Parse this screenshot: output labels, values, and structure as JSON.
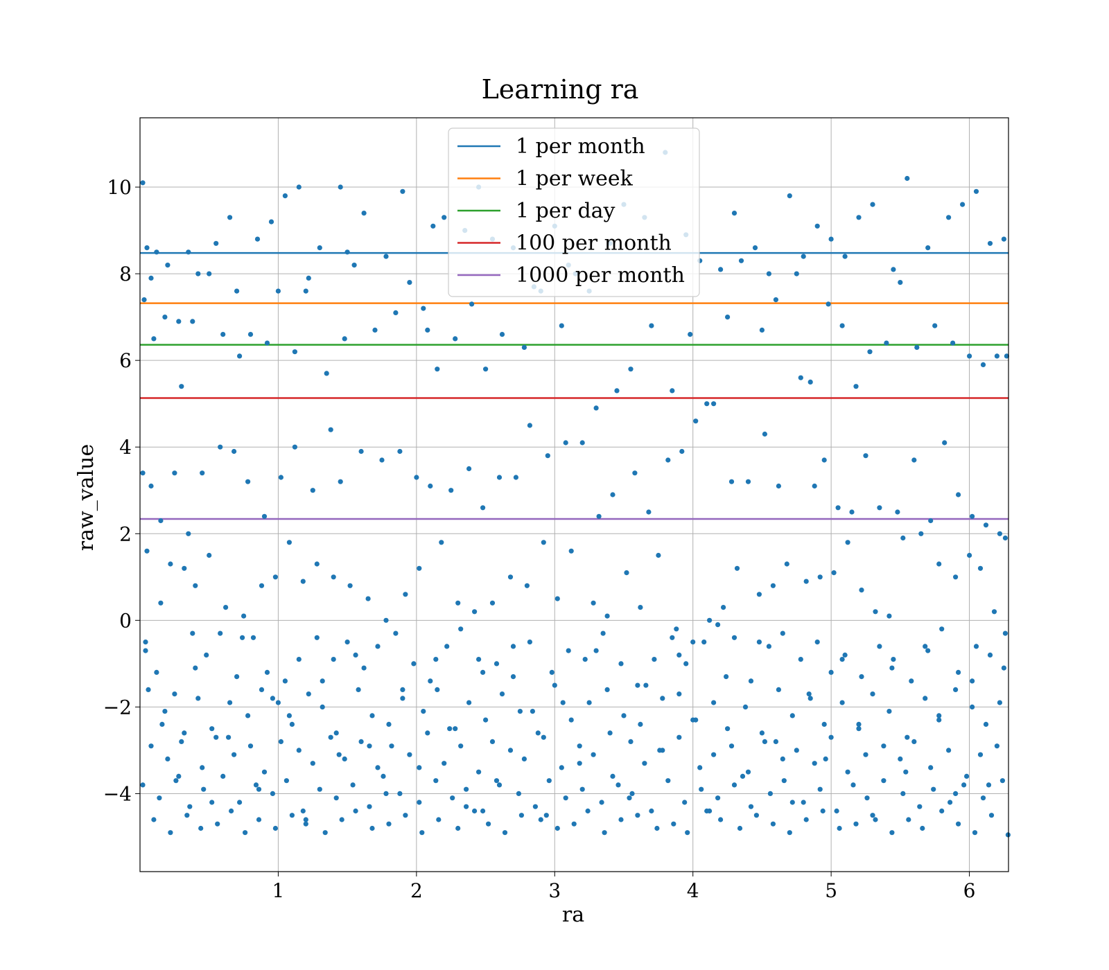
{
  "chart_data": {
    "type": "scatter",
    "title": "Learning ra",
    "xlabel": "ra",
    "ylabel": "raw_value",
    "xlim": [
      0,
      6.283
    ],
    "ylim": [
      -5.8,
      11.6
    ],
    "xticks": [
      1,
      2,
      3,
      4,
      5,
      6
    ],
    "xtick_labels": [
      "1",
      "2",
      "3",
      "4",
      "5",
      "6"
    ],
    "yticks": [
      -4,
      -2,
      0,
      2,
      4,
      6,
      8,
      10
    ],
    "ytick_labels": [
      "−4",
      "−2",
      "0",
      "2",
      "4",
      "6",
      "8",
      "10"
    ],
    "grid": true,
    "legend_position": "upper-center",
    "scatter_color": "#1f77b4",
    "reference_lines": [
      {
        "name": "1 per month",
        "y": 8.48,
        "color": "#1f77b4"
      },
      {
        "name": "1 per week",
        "y": 7.32,
        "color": "#ff7f0e"
      },
      {
        "name": "1 per day",
        "y": 6.36,
        "color": "#2ca02c"
      },
      {
        "name": "100 per month",
        "y": 5.13,
        "color": "#d62728"
      },
      {
        "name": "1000 per month",
        "y": 2.34,
        "color": "#9467bd"
      }
    ],
    "points": {
      "x": [
        0.02,
        0.05,
        0.08,
        0.12,
        0.2,
        0.28,
        0.35,
        0.42,
        0.55,
        0.65,
        0.7,
        0.85,
        0.95,
        1.05,
        1.15,
        1.2,
        1.3,
        1.45,
        1.5,
        1.62,
        1.78,
        1.9,
        2.05,
        2.12,
        2.2,
        2.35,
        2.45,
        2.55,
        2.7,
        2.85,
        3.0,
        3.1,
        3.25,
        3.4,
        3.5,
        3.65,
        3.8,
        3.95,
        4.05,
        4.2,
        4.3,
        4.45,
        4.55,
        4.7,
        4.8,
        4.9,
        5.0,
        5.1,
        5.2,
        5.3,
        5.45,
        5.55,
        5.7,
        5.85,
        5.95,
        6.05,
        6.15,
        6.25,
        0.03,
        0.1,
        0.18,
        0.3,
        0.38,
        0.5,
        0.6,
        0.72,
        0.8,
        0.92,
        1.0,
        1.12,
        1.22,
        1.35,
        1.48,
        1.55,
        1.7,
        1.85,
        1.95,
        2.08,
        2.15,
        2.28,
        2.4,
        2.5,
        2.62,
        2.78,
        2.9,
        3.05,
        3.15,
        3.3,
        3.45,
        3.55,
        3.7,
        3.85,
        3.98,
        4.1,
        4.25,
        4.35,
        4.5,
        4.6,
        4.75,
        4.85,
        4.98,
        5.08,
        5.18,
        5.28,
        5.4,
        5.5,
        5.62,
        5.75,
        5.88,
        6.0,
        6.1,
        6.2,
        6.27,
        0.02,
        0.08,
        0.15,
        0.25,
        0.35,
        0.45,
        0.58,
        0.68,
        0.78,
        0.9,
        1.02,
        1.12,
        1.25,
        1.38,
        1.45,
        1.6,
        1.75,
        1.88,
        2.0,
        2.1,
        2.25,
        2.38,
        2.48,
        2.6,
        2.72,
        2.82,
        2.95,
        3.08,
        3.2,
        3.32,
        3.42,
        3.58,
        3.68,
        3.82,
        3.92,
        4.02,
        4.15,
        4.28,
        4.4,
        4.52,
        4.62,
        4.78,
        4.88,
        4.95,
        5.05,
        5.15,
        5.25,
        5.35,
        5.48,
        5.6,
        5.72,
        5.82,
        5.92,
        6.02,
        6.12,
        6.22,
        0.05,
        0.15,
        0.22,
        0.32,
        0.4,
        0.5,
        0.62,
        0.75,
        0.88,
        0.98,
        1.08,
        1.18,
        1.28,
        1.4,
        1.52,
        1.65,
        1.78,
        1.92,
        2.02,
        2.18,
        2.3,
        2.42,
        2.55,
        2.68,
        2.8,
        2.92,
        3.02,
        3.12,
        3.28,
        3.38,
        3.52,
        3.62,
        3.75,
        3.88,
        4.0,
        4.12,
        4.22,
        4.32,
        4.48,
        4.58,
        4.68,
        4.82,
        4.92,
        5.02,
        5.12,
        5.22,
        5.32,
        5.42,
        5.52,
        5.65,
        5.78,
        5.9,
        6.0,
        6.08,
        6.18,
        6.26,
        0.04,
        0.12,
        0.25,
        0.38,
        0.48,
        0.58,
        0.7,
        0.82,
        0.92,
        1.05,
        1.15,
        1.28,
        1.4,
        1.5,
        1.62,
        1.72,
        1.85,
        1.98,
        2.1,
        2.22,
        2.32,
        2.45,
        2.58,
        2.7,
        2.82,
        2.98,
        3.1,
        3.22,
        3.35,
        3.48,
        3.6,
        3.72,
        3.85,
        3.95,
        4.08,
        4.18,
        4.3,
        4.42,
        4.55,
        4.65,
        4.78,
        4.9,
        5.0,
        5.1,
        5.22,
        5.35,
        5.45,
        5.58,
        5.7,
        5.8,
        5.92,
        6.05,
        6.15,
        6.25,
        0.06,
        0.18,
        0.3,
        0.42,
        0.52,
        0.65,
        0.78,
        0.88,
        1.0,
        1.1,
        1.22,
        1.32,
        1.42,
        1.58,
        1.68,
        1.8,
        1.9,
        2.05,
        2.15,
        2.28,
        2.38,
        2.5,
        2.62,
        2.75,
        2.88,
        3.0,
        3.12,
        3.25,
        3.38,
        3.5,
        3.62,
        3.78,
        3.9,
        4.02,
        4.15,
        4.25,
        4.38,
        4.5,
        4.62,
        4.72,
        4.85,
        4.95,
        5.08,
        5.2,
        5.3,
        5.42,
        5.55,
        5.68,
        5.78,
        5.9,
        6.02,
        6.12,
        6.22,
        0.08,
        0.2,
        0.32,
        0.45,
        0.55,
        0.68,
        0.8,
        0.9,
        1.02,
        1.15,
        1.25,
        1.38,
        1.48,
        1.6,
        1.72,
        1.82,
        1.95,
        2.08,
        2.2,
        2.32,
        2.45,
        2.55,
        2.68,
        2.78,
        2.92,
        3.05,
        3.18,
        3.28,
        3.42,
        3.55,
        3.65,
        3.78,
        3.9,
        4.05,
        4.15,
        4.28,
        4.4,
        4.52,
        4.65,
        4.75,
        4.88,
        5.0,
        5.12,
        5.25,
        5.38,
        5.5,
        5.6,
        5.72,
        5.85,
        5.98,
        6.08,
        6.2,
        0.02,
        0.14,
        0.26,
        0.36,
        0.46,
        0.6,
        0.72,
        0.84,
        0.96,
        1.06,
        1.18,
        1.3,
        1.42,
        1.54,
        1.66,
        1.76,
        1.88,
        2.02,
        2.14,
        2.26,
        2.36,
        2.48,
        2.6,
        2.74,
        2.86,
        2.96,
        3.08,
        3.2,
        3.34,
        3.46,
        3.56,
        3.7,
        3.82,
        3.94,
        4.06,
        4.18,
        4.3,
        4.42,
        4.56,
        4.66,
        4.8,
        4.92,
        5.04,
        5.16,
        5.26,
        5.38,
        5.52,
        5.64,
        5.74,
        5.86,
        5.96,
        6.1,
        6.24,
        0.1,
        0.22,
        0.34,
        0.44,
        0.56,
        0.66,
        0.76,
        0.86,
        0.98,
        1.1,
        1.2,
        1.34,
        1.46,
        1.56,
        1.68,
        1.8,
        1.92,
        2.04,
        2.16,
        2.3,
        2.42,
        2.52,
        2.64,
        2.76,
        2.9,
        3.02,
        3.14,
        3.24,
        3.36,
        3.48,
        3.6,
        3.74,
        3.86,
        3.96,
        4.1,
        4.2,
        4.34,
        4.46,
        4.58,
        4.7,
        4.82,
        4.94,
        5.06,
        5.18,
        5.3,
        5.44,
        5.56,
        5.66,
        5.8,
        5.92,
        6.04,
        6.16,
        6.28,
        0.04,
        0.16,
        0.28,
        0.4,
        0.52,
        0.64,
        0.74,
        0.86,
        0.96,
        1.08,
        1.2,
        1.32,
        1.44,
        1.56,
        1.66,
        1.78,
        1.9,
        2.02,
        2.14,
        2.24,
        2.36,
        2.48,
        2.58,
        2.7,
        2.84,
        2.94,
        3.06,
        3.18,
        3.3,
        3.4,
        3.54,
        3.66,
        3.76,
        3.9,
        4.0,
        4.12,
        4.24,
        4.36,
        4.48,
        4.6,
        4.72,
        4.84,
        4.96,
        5.08,
        5.2,
        5.32,
        5.44,
        5.54,
        5.68,
        5.78,
        5.9,
        6.02,
        6.14,
        6.26
      ],
      "y": [
        10.1,
        8.6,
        7.9,
        8.5,
        8.2,
        6.9,
        8.5,
        8.0,
        8.7,
        9.3,
        7.6,
        8.8,
        9.2,
        9.8,
        10.0,
        7.6,
        8.6,
        10.0,
        8.5,
        9.4,
        8.4,
        9.9,
        7.2,
        9.1,
        9.3,
        9.0,
        10.0,
        8.8,
        8.6,
        7.7,
        9.1,
        8.2,
        7.6,
        8.7,
        9.6,
        9.3,
        10.8,
        8.9,
        8.3,
        8.1,
        9.4,
        8.6,
        8.0,
        9.8,
        8.4,
        9.1,
        8.8,
        8.4,
        9.3,
        9.6,
        8.1,
        10.2,
        8.6,
        9.3,
        9.6,
        9.9,
        8.7,
        8.8,
        7.4,
        6.5,
        7.0,
        5.4,
        6.9,
        8.0,
        6.6,
        6.1,
        6.6,
        6.4,
        7.6,
        6.2,
        7.9,
        5.7,
        6.5,
        8.2,
        6.7,
        7.1,
        7.8,
        6.7,
        5.8,
        6.5,
        7.3,
        5.8,
        6.6,
        6.3,
        7.6,
        6.8,
        8.0,
        4.9,
        5.3,
        5.8,
        6.8,
        5.3,
        6.6,
        5.0,
        7.0,
        8.3,
        6.7,
        7.4,
        8.0,
        5.5,
        7.3,
        6.8,
        5.4,
        6.2,
        6.4,
        7.8,
        6.3,
        6.8,
        6.4,
        6.1,
        5.9,
        6.1,
        6.1,
        3.4,
        3.1,
        2.3,
        3.4,
        2.0,
        3.4,
        4.0,
        3.9,
        3.2,
        2.4,
        3.3,
        4.0,
        3.0,
        4.4,
        3.2,
        3.9,
        3.7,
        3.9,
        3.3,
        3.1,
        3.0,
        3.5,
        2.6,
        3.3,
        3.3,
        4.5,
        3.8,
        4.1,
        4.1,
        2.4,
        2.9,
        3.4,
        2.5,
        3.7,
        3.9,
        4.6,
        5.0,
        3.2,
        3.2,
        4.3,
        3.1,
        5.6,
        3.1,
        3.7,
        2.6,
        2.5,
        3.8,
        2.6,
        2.5,
        3.7,
        2.3,
        4.1,
        2.9,
        2.4,
        2.2,
        2.0,
        1.6,
        0.4,
        1.3,
        1.2,
        0.8,
        1.5,
        0.3,
        0.1,
        0.8,
        1.0,
        1.8,
        0.9,
        1.3,
        1.0,
        0.8,
        0.5,
        0.0,
        0.6,
        1.2,
        1.8,
        0.4,
        0.2,
        0.4,
        1.0,
        0.8,
        1.8,
        0.5,
        1.6,
        0.4,
        0.1,
        1.1,
        0.3,
        1.5,
        -0.2,
        -0.5,
        0.0,
        0.3,
        1.2,
        0.6,
        0.8,
        1.3,
        0.9,
        1.0,
        1.1,
        1.8,
        0.7,
        0.2,
        0.1,
        1.9,
        2.0,
        1.3,
        1.0,
        1.5,
        1.2,
        0.2,
        1.9,
        -0.5,
        -1.2,
        -1.7,
        -0.3,
        -0.8,
        -0.3,
        -1.3,
        -0.4,
        -1.2,
        -1.4,
        -0.9,
        -0.4,
        -0.9,
        -0.5,
        -1.1,
        -0.6,
        -0.3,
        -1.0,
        -1.4,
        -0.6,
        -0.2,
        -0.9,
        -1.0,
        -1.3,
        -0.5,
        -1.2,
        -0.7,
        -0.9,
        -0.3,
        -1.0,
        -1.5,
        -0.9,
        -0.4,
        -1.0,
        -0.5,
        -0.1,
        -0.4,
        -1.4,
        -0.6,
        -0.3,
        -0.9,
        -0.5,
        -1.2,
        -0.8,
        -1.3,
        -0.6,
        -0.9,
        -1.4,
        -0.7,
        -0.2,
        -1.2,
        -0.6,
        -0.8,
        -1.1,
        -1.6,
        -2.1,
        -2.8,
        -1.8,
        -2.5,
        -1.9,
        -2.2,
        -1.6,
        -1.9,
        -2.4,
        -1.7,
        -2.0,
        -2.6,
        -1.6,
        -2.2,
        -2.4,
        -1.8,
        -2.1,
        -1.6,
        -2.5,
        -1.9,
        -2.3,
        -1.7,
        -2.1,
        -2.6,
        -1.5,
        -2.3,
        -1.9,
        -1.6,
        -2.2,
        -2.4,
        -1.8,
        -1.7,
        -2.3,
        -1.9,
        -2.5,
        -2.0,
        -2.6,
        -1.6,
        -2.2,
        -1.8,
        -2.4,
        -1.9,
        -2.5,
        -1.7,
        -2.1,
        -2.7,
        -1.8,
        -2.3,
        -1.6,
        -2.0,
        -2.4,
        -1.9,
        -2.9,
        -3.2,
        -2.6,
        -3.4,
        -2.7,
        -3.1,
        -2.9,
        -3.5,
        -2.8,
        -3.0,
        -3.3,
        -2.7,
        -3.2,
        -2.8,
        -3.4,
        -2.9,
        -3.1,
        -2.6,
        -3.3,
        -2.9,
        -3.5,
        -2.8,
        -3.0,
        -3.2,
        -2.7,
        -3.4,
        -2.9,
        -3.1,
        -3.6,
        -2.8,
        -3.3,
        -3.0,
        -2.7,
        -3.4,
        -3.1,
        -2.9,
        -3.5,
        -2.8,
        -3.2,
        -3.0,
        -3.3,
        -2.7,
        -3.5,
        -3.1,
        -2.9,
        -3.2,
        -2.8,
        -3.4,
        -3.0,
        -3.6,
        -3.1,
        -2.9,
        -3.8,
        -4.1,
        -3.7,
        -4.3,
        -3.9,
        -3.6,
        -4.2,
        -3.8,
        -4.0,
        -3.7,
        -4.4,
        -3.9,
        -4.1,
        -3.8,
        -4.3,
        -3.6,
        -4.0,
        -4.2,
        -3.7,
        -4.1,
        -3.9,
        -4.4,
        -3.8,
        -4.0,
        -4.3,
        -3.7,
        -4.1,
        -3.9,
        -4.2,
        -3.8,
        -4.0,
        -4.4,
        -3.7,
        -4.2,
        -3.9,
        -4.1,
        -3.8,
        -4.3,
        -4.0,
        -3.7,
        -4.2,
        -3.9,
        -4.4,
        -3.8,
        -4.1,
        -3.7,
        -4.0,
        -4.3,
        -3.9,
        -4.2,
        -3.8,
        -4.1,
        -3.7,
        -4.6,
        -4.9,
        -4.5,
        -4.8,
        -4.7,
        -4.4,
        -4.9,
        -4.6,
        -4.8,
        -4.5,
        -4.7,
        -4.9,
        -4.6,
        -4.4,
        -4.8,
        -4.7,
        -4.5,
        -4.9,
        -4.6,
        -4.8,
        -4.4,
        -4.7,
        -4.9,
        -4.5,
        -4.6,
        -4.8,
        -4.7,
        -4.4,
        -4.9,
        -4.6,
        -4.5,
        -4.8,
        -4.7,
        -4.9,
        -4.4,
        -4.6,
        -4.8,
        -4.5,
        -4.7,
        -4.9,
        -4.6,
        -4.4,
        -4.8,
        -4.7,
        -4.5,
        -4.9,
        -4.6,
        -4.8,
        -4.4,
        -4.7,
        -4.9,
        -4.5,
        -4.95,
        -0.7,
        -2.4,
        -3.6,
        -1.1,
        -4.2,
        -2.7,
        -0.4,
        -3.9,
        -1.8,
        -2.2,
        -4.6,
        -1.4,
        -3.1,
        -0.8,
        -2.9,
        -4.0,
        -1.6,
        -3.4,
        -0.9,
        -2.5,
        -4.3,
        -1.2,
        -3.7,
        -0.6,
        -2.1,
        -4.5,
        -1.9,
        -3.3,
        -0.7,
        -2.6,
        -4.1,
        -1.5,
        -3.0,
        -0.8,
        -2.3,
        -4.4,
        -1.3,
        -3.6,
        -0.5,
        -2.8,
        -4.2,
        -1.7,
        -3.2,
        -0.9,
        -2.4,
        -4.6,
        -1.1,
        -3.5,
        -0.6,
        -2.2,
        -4.0,
        -1.4,
        -3.8,
        -0.3
      ]
    }
  }
}
